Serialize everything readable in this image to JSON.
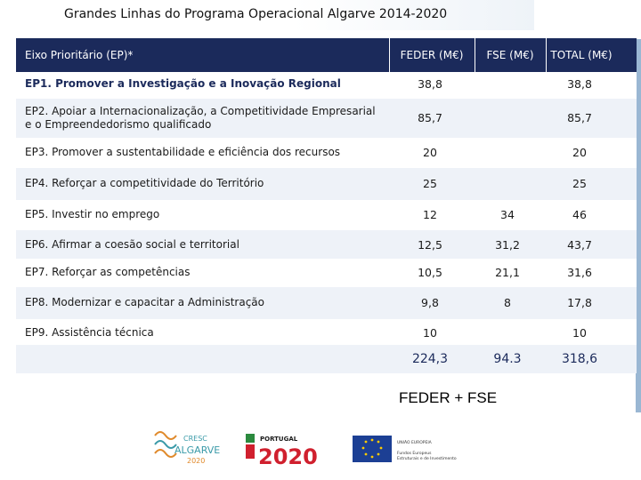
{
  "title": "Grandes Linhas do Programa Operacional Algarve 2014-2020",
  "table": {
    "headers": {
      "axis": "Eixo Prioritário (EP)*",
      "feder": "FEDER (M€)",
      "fse": "FSE (M€)",
      "total": "TOTAL (M€)"
    },
    "rows": [
      {
        "label": "EP1. Promover a Investigação e a Inovação Regional",
        "feder": "38,8",
        "fse": "",
        "total": "38,8"
      },
      {
        "label": "EP2. Apoiar a Internacionalização, a Competitividade Empresarial e o Empreendedorismo qualificado",
        "feder": "85,7",
        "fse": "",
        "total": "85,7"
      },
      {
        "label": "EP3. Promover a sustentabilidade e eficiência dos recursos",
        "feder": "20",
        "fse": "",
        "total": "20"
      },
      {
        "label": "EP4. Reforçar a competitividade do Território",
        "feder": "25",
        "fse": "",
        "total": "25"
      },
      {
        "label": "EP5. Investir no emprego",
        "feder": "12",
        "fse": "34",
        "total": "46"
      },
      {
        "label": "EP6. Afirmar a coesão social e territorial",
        "feder": "12,5",
        "fse": "31,2",
        "total": "43,7"
      },
      {
        "label": "EP7. Reforçar as competências",
        "feder": "10,5",
        "fse": "21,1",
        "total": "31,6"
      },
      {
        "label": "EP8. Modernizar e capacitar a Administração",
        "feder": "9,8",
        "fse": "8",
        "total": "17,8"
      },
      {
        "label": "EP9. Assistência técnica",
        "feder": "10",
        "fse": "",
        "total": "10"
      }
    ],
    "totals": {
      "feder": "224,3",
      "fse": "94.3",
      "total": "318,6"
    }
  },
  "footer_note": "FEDER + FSE",
  "logos": {
    "cresc": {
      "line1": "CRESC",
      "line2": "ALGARVE",
      "line3": "2020"
    },
    "portugal": {
      "line1": "PORTUGAL",
      "line2": "2020"
    },
    "eu": {
      "line1": "UNIÃO EUROPEIA",
      "line2": "Fundos Europeus",
      "line3": "Estruturais e de Investimento"
    }
  },
  "colors": {
    "header_bg": "#1b2a5b",
    "accent_red": "#d0202e",
    "eu_blue": "#1c3f94",
    "eu_star": "#ffcc00",
    "cresc_teal": "#3a9aa8",
    "cresc_orange": "#e08a2c"
  }
}
